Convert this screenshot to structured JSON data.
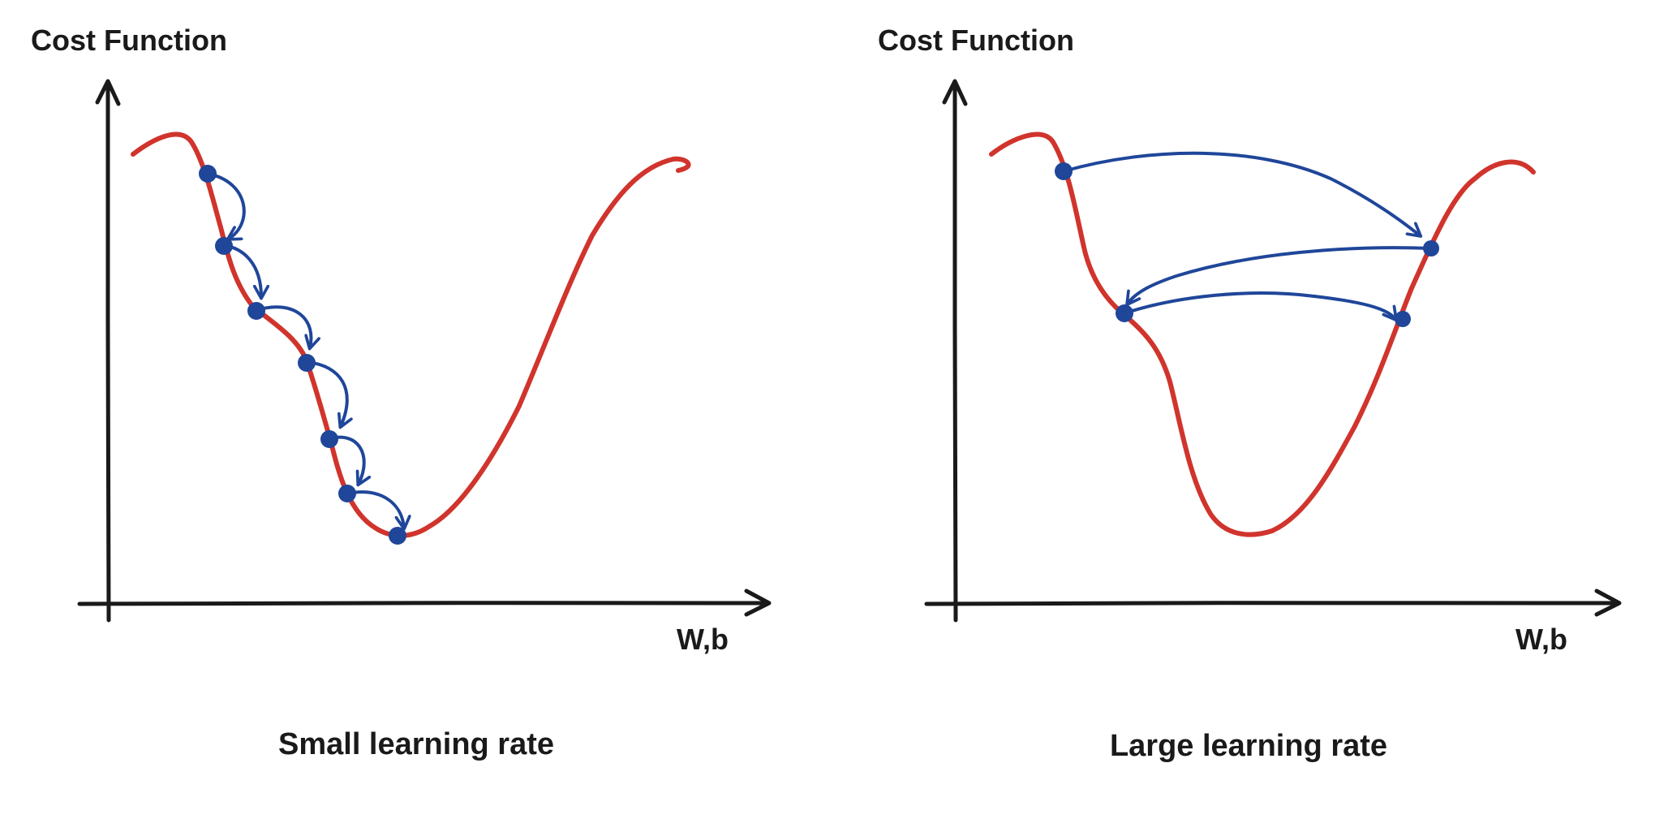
{
  "panels": [
    {
      "y_label": "Cost Function",
      "x_label": "W,b",
      "caption": "Small learning rate"
    },
    {
      "y_label": "Cost Function",
      "x_label": "W,b",
      "caption": "Large learning rate"
    }
  ],
  "colors": {
    "curve": "#d0342c",
    "steps": "#1f4699",
    "axes": "#1a1a1a"
  }
}
